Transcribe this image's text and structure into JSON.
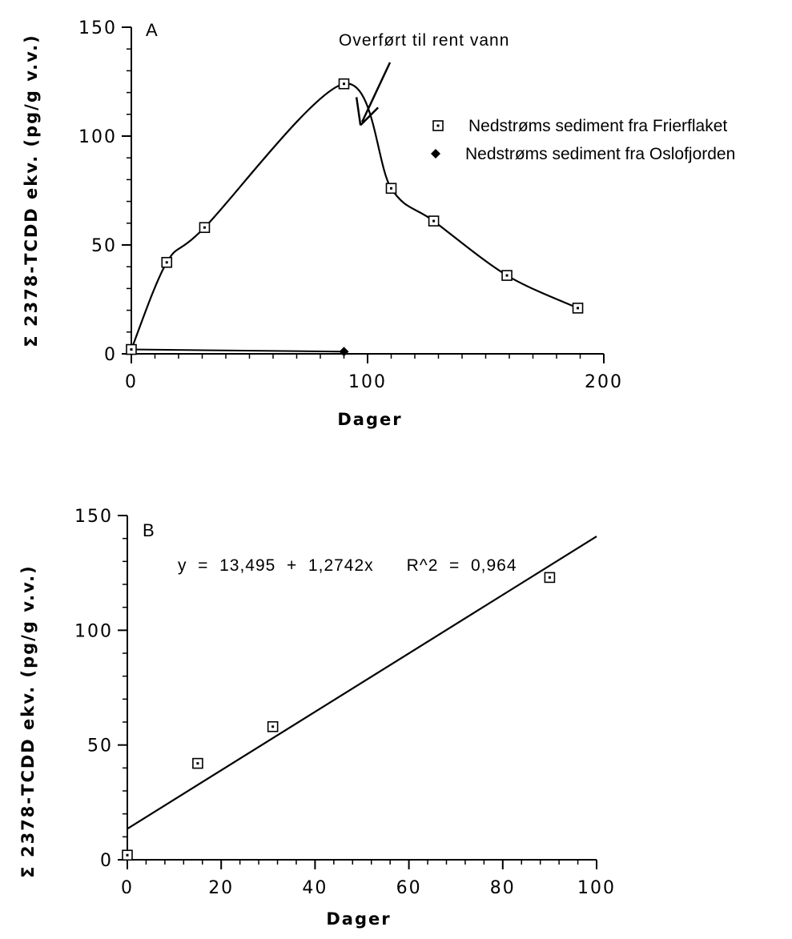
{
  "chart_data": [
    {
      "type": "line",
      "panel_label": "A",
      "xlabel": "Dager",
      "ylabel": "Σ  2378-TCDD  ekv.   (pg/g   v.v.)",
      "xlim": [
        0,
        200
      ],
      "ylim": [
        0,
        150
      ],
      "x_ticks": [
        0,
        100,
        200
      ],
      "y_ticks": [
        0,
        50,
        100,
        150
      ],
      "annotation": "Overført til rent vann",
      "annotation_at": [
        97,
        105
      ],
      "legend_position": "right",
      "series": [
        {
          "name": "Nedstrøms sediment fra Frierflaket",
          "marker": "open-square",
          "x": [
            0,
            15,
            31,
            90,
            110,
            128,
            159,
            189
          ],
          "y": [
            2,
            42,
            58,
            124,
            76,
            61,
            36,
            21
          ]
        },
        {
          "name": "Nedstrøms sediment fra Oslofjorden",
          "marker": "filled-diamond",
          "x": [
            0,
            90
          ],
          "y": [
            2,
            1
          ]
        }
      ]
    },
    {
      "type": "scatter",
      "panel_label": "B",
      "xlabel": "Dager",
      "ylabel": "Σ  2378-TCDD  ekv.   (pg/g   v.v.)",
      "xlim": [
        0,
        100
      ],
      "ylim": [
        0,
        150
      ],
      "x_ticks": [
        0,
        20,
        40,
        60,
        80,
        100
      ],
      "y_ticks": [
        0,
        50,
        100,
        150
      ],
      "equation": "y  =  13,495  +  1,2742x      R^2  =  0,964",
      "fit": {
        "intercept": 13.495,
        "slope": 1.2742
      },
      "series": [
        {
          "marker": "open-square",
          "x": [
            0,
            15,
            31,
            90
          ],
          "y": [
            2,
            42,
            58,
            123
          ]
        }
      ]
    }
  ]
}
